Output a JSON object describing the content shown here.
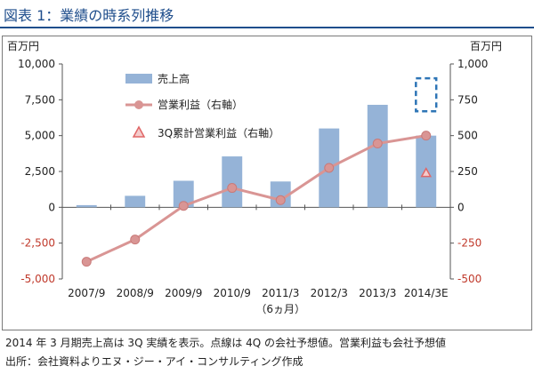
{
  "figure": {
    "title": "図表 1：業績の時系列推移",
    "notes": [
      "2014 年 3 月期売上高は 3Q 実績を表示。点線は 4Q の会社予想値。営業利益も会社予想値",
      "出所：会社資料よりエヌ・ジー・アイ・コンサルティング作成"
    ]
  },
  "chart_data": {
    "type": "bar",
    "title": "",
    "y_left_unit": "百万円",
    "y_right_unit": "百万円",
    "categories": [
      "2007/9",
      "2008/9",
      "2009/9",
      "2010/9",
      "2011/3",
      "2012/3",
      "2013/3",
      "2014/3E"
    ],
    "category_sublabels": [
      "",
      "",
      "",
      "",
      "（6ヵ月）",
      "",
      "",
      ""
    ],
    "y_left": {
      "min": -5000,
      "max": 10000,
      "ticks": [
        -5000,
        -2500,
        0,
        2500,
        5000,
        7500,
        10000
      ],
      "tick_labels": [
        "-5,000",
        "-2,500",
        "0",
        "2,500",
        "5,000",
        "7,500",
        "10,000"
      ]
    },
    "y_right": {
      "min": -500,
      "max": 1000,
      "ticks": [
        -500,
        -250,
        0,
        250,
        500,
        750,
        1000
      ],
      "tick_labels": [
        "-500",
        "-250",
        "0",
        "250",
        "500",
        "750",
        "1,000"
      ]
    },
    "series": [
      {
        "name": "売上高",
        "kind": "bar",
        "axis": "left",
        "color": "#95b3d7",
        "values": [
          150,
          800,
          1850,
          3550,
          1800,
          5500,
          7150,
          5000
        ]
      },
      {
        "name": "営業利益（右軸）",
        "kind": "line",
        "axis": "right",
        "color": "#d99594",
        "values": [
          -380,
          -225,
          10,
          135,
          50,
          275,
          445,
          500
        ]
      },
      {
        "name": "3Q累計営業利益（右軸）",
        "kind": "marker",
        "axis": "right",
        "color": "#e06666",
        "values": [
          null,
          null,
          null,
          null,
          null,
          null,
          null,
          240
        ]
      }
    ],
    "forecast_box": {
      "category": "2014/3E",
      "axis": "left",
      "from": 6700,
      "to": 9000,
      "style": "dashed",
      "color": "#2e75b6"
    },
    "grid": false,
    "legend_position": "upper-left"
  }
}
